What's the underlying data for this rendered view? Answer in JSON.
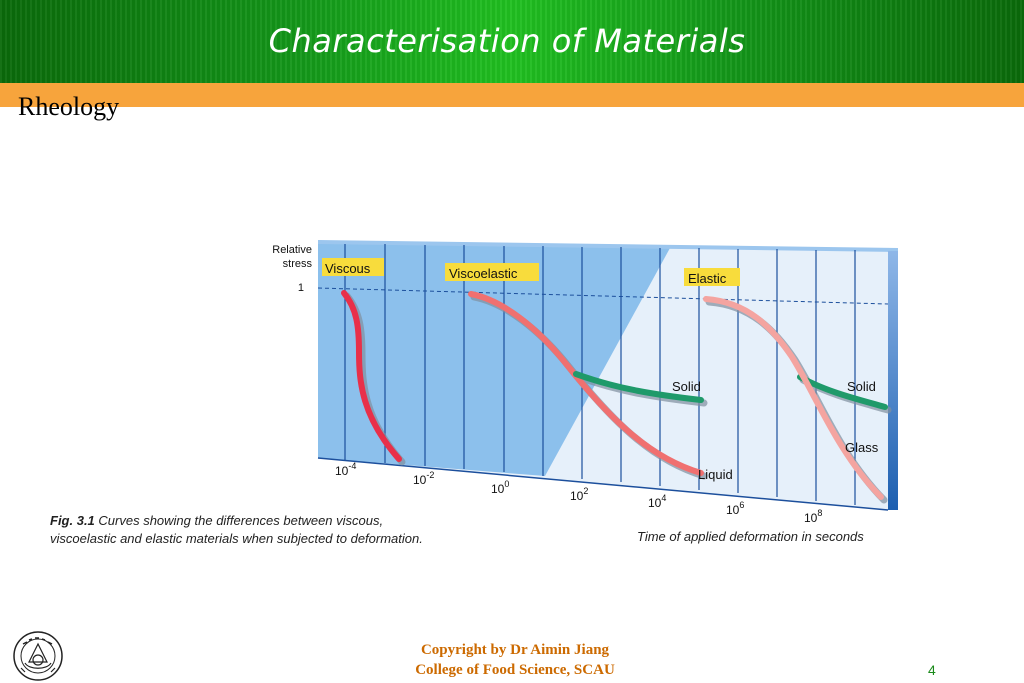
{
  "header": {
    "title": "Characterisation of Materials"
  },
  "section": {
    "title": "Rheology"
  },
  "figure": {
    "y_axis_label_line1": "Relative",
    "y_axis_label_line2": "stress",
    "y_tick": "1",
    "regions": {
      "viscous": "Viscous",
      "viscoelastic": "Viscoelastic",
      "elastic": "Elastic"
    },
    "curve_labels": {
      "solid_1": "Solid",
      "liquid": "Liquid",
      "solid_2": "Solid",
      "glass": "Glass"
    },
    "x_ticks": [
      {
        "base": "10",
        "exp": "-4"
      },
      {
        "base": "10",
        "exp": "-2"
      },
      {
        "base": "10",
        "exp": "0"
      },
      {
        "base": "10",
        "exp": "2"
      },
      {
        "base": "10",
        "exp": "4"
      },
      {
        "base": "10",
        "exp": "6"
      },
      {
        "base": "10",
        "exp": "8"
      }
    ],
    "caption_label": "Fig. 3.1",
    "caption_line1": " Curves showing the differences between viscous,",
    "caption_line2": "viscoelastic and elastic materials when subjected to deformation.",
    "x_axis_title": "Time of applied deformation in seconds"
  },
  "footer": {
    "copyright_line1": "Copyright by Dr Aimin Jiang",
    "copyright_line2": "College of Food Science, SCAU",
    "page_number": "4"
  },
  "colors": {
    "header_green": "#14991a",
    "orange": "#f7a43c",
    "copyright": "#cc6a00",
    "page_number": "#1a8a1a"
  }
}
